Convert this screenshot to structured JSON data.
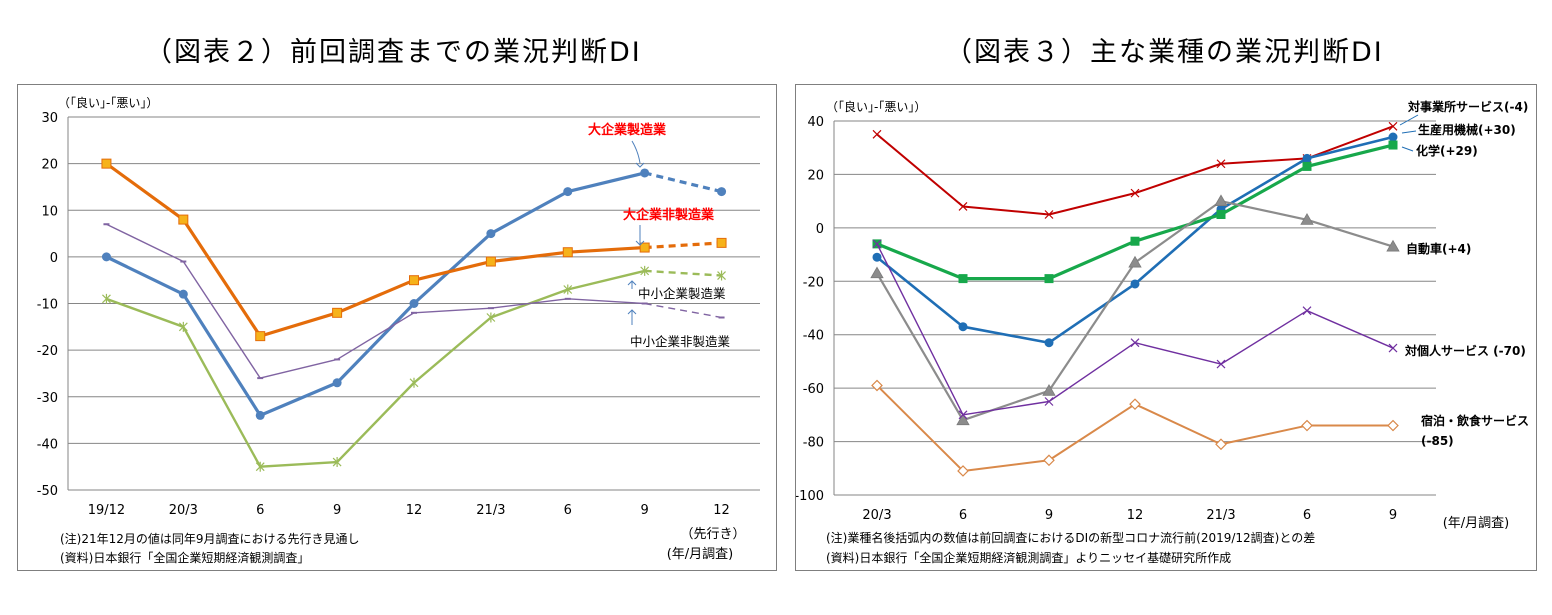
{
  "figures": {
    "fig2": {
      "title": "（図表２）前回調査までの業況判断DI",
      "unit_label": "（｢良い｣-｢悪い｣）",
      "xaxis_sub_label": "（先行き）",
      "xaxis_unit": "(年/月調査)",
      "note": "(注)21年12月の値は同年9月調査における先行き見通し",
      "source": "(資料)日本銀行「全国企業短期経済観測調査」",
      "annotations": [
        "大企業製造業",
        "大企業非製造業",
        "中小企業製造業",
        "中小企業非製造業"
      ]
    },
    "fig3": {
      "title": "（図表３）主な業種の業況判断DI",
      "unit_label": "（｢良い｣-｢悪い｣）",
      "xaxis_unit": "(年/月調査)",
      "note": "(注)業種名後括弧内の数値は前回調査におけるDIの新型コロナ流行前(2019/12調査)との差",
      "source": "(資料)日本銀行「全国企業短期経済観測調査」よりニッセイ基礎研究所作成",
      "annotations": [
        "対事業所サービス(-4)",
        "生産用機械(+30)",
        "化学(+29)",
        "自動車(+4)",
        "対個人サービス (-70)",
        "宿泊・飲食サービス",
        "(-85)"
      ]
    }
  },
  "colors": {
    "blue": "#4f81bd",
    "orange": "#e46c0a",
    "purple": "#8064a2",
    "green": "#9bbb59",
    "darkred": "#c00000",
    "darkblue": "#1f6eb5",
    "brightgreen": "#17a84b",
    "gray": "#8c8c8c",
    "violet": "#7030a0",
    "tan": "#d9894a",
    "red": "#ff0000"
  },
  "chart_data": [
    {
      "type": "line",
      "title": "（図表２）前回調査までの業況判断DI",
      "ylabel": "（｢良い｣-｢悪い｣）",
      "xlabel": "(年/月調査)",
      "categories": [
        "19/12",
        "20/3",
        "6",
        "9",
        "12",
        "21/3",
        "6",
        "9",
        "12"
      ],
      "yticks": [
        "30",
        "20",
        "10",
        "0",
        "-10",
        "-20",
        "-30",
        "-40",
        "-50"
      ],
      "ylim": [
        -50,
        30
      ],
      "grid": true,
      "series": [
        {
          "name": "大企業製造業",
          "values": [
            0,
            -8,
            -34,
            -27,
            -10,
            5,
            14,
            18,
            14
          ],
          "forecast_from": 7
        },
        {
          "name": "大企業非製造業",
          "values": [
            20,
            8,
            -17,
            -12,
            -5,
            -1,
            1,
            2,
            3
          ],
          "forecast_from": 7
        },
        {
          "name": "中小企業製造業",
          "values": [
            -9,
            -15,
            -45,
            -44,
            -27,
            -13,
            -7,
            -3,
            -4
          ],
          "forecast_from": 7
        },
        {
          "name": "中小企業非製造業",
          "values": [
            7,
            -1,
            -26,
            -22,
            -12,
            -11,
            -9,
            -10,
            -13
          ],
          "forecast_from": 7
        }
      ]
    },
    {
      "type": "line",
      "title": "（図表３）主な業種の業況判断DI",
      "ylabel": "（｢良い｣-｢悪い｣）",
      "xlabel": "(年/月調査)",
      "categories": [
        "20/3",
        "6",
        "9",
        "12",
        "21/3",
        "6",
        "9"
      ],
      "yticks": [
        "40",
        "20",
        "0",
        "-20",
        "-40",
        "-60",
        "-80",
        "-100"
      ],
      "ylim": [
        -100,
        40
      ],
      "grid": true,
      "series": [
        {
          "name": "対事業所サービス(-4)",
          "values": [
            35,
            8,
            5,
            13,
            24,
            26,
            38
          ]
        },
        {
          "name": "生産用機械(+30)",
          "values": [
            -11,
            -37,
            -43,
            -21,
            7,
            26,
            34
          ]
        },
        {
          "name": "化学(+29)",
          "values": [
            -6,
            -19,
            -19,
            -5,
            5,
            23,
            31
          ]
        },
        {
          "name": "自動車(+4)",
          "values": [
            -17,
            -72,
            -61,
            -13,
            10,
            3,
            -7
          ]
        },
        {
          "name": "対個人サービス (-70)",
          "values": [
            -6,
            -70,
            -65,
            -43,
            -51,
            -31,
            -45
          ]
        },
        {
          "name": "宿泊・飲食サービス(-85)",
          "values": [
            -59,
            -91,
            -87,
            -66,
            -81,
            -74,
            -74
          ]
        }
      ]
    }
  ]
}
